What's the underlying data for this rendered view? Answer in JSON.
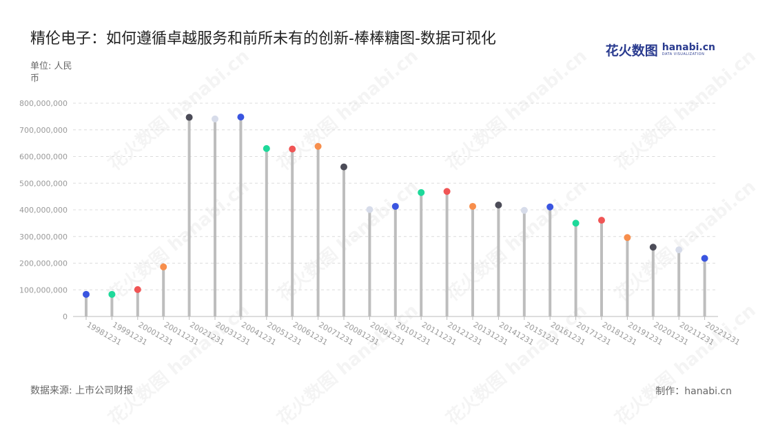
{
  "page": {
    "title": "精伦电子：如何遵循卓越服务和前所未有的创新-棒棒糖图-数据可视化",
    "unit": "单位: 人民币",
    "source": "数据来源: 上市公司财报",
    "credit": "制作：hanabi.cn",
    "logo_cn": "花火数图",
    "logo_en": "hanabi.cn",
    "logo_sub": "DATA VISUALIZATION",
    "watermark": "花火数图 hanabi.cn"
  },
  "chart_data": {
    "type": "lollipop",
    "categories": [
      "19981231",
      "19991231",
      "20001231",
      "20011231",
      "20021231",
      "20031231",
      "20041231",
      "20051231",
      "20061231",
      "20071231",
      "20081231",
      "20091231",
      "20101231",
      "20111231",
      "20121231",
      "20131231",
      "20141231",
      "20151231",
      "20161231",
      "20171231",
      "20181231",
      "20191231",
      "20201231",
      "20211231",
      "20221231"
    ],
    "values": [
      83000000,
      83000000,
      101000000,
      186000000,
      747000000,
      741000000,
      748000000,
      630000000,
      628000000,
      638000000,
      561000000,
      401000000,
      413000000,
      465000000,
      469000000,
      413000000,
      418000000,
      398000000,
      411000000,
      350000000,
      361000000,
      296000000,
      260000000,
      250000000,
      218000000
    ],
    "y_ticks": [
      0,
      100000000,
      200000000,
      300000000,
      400000000,
      500000000,
      600000000,
      700000000,
      800000000
    ],
    "y_tick_labels": [
      "0",
      "100,000,000",
      "200,000,000",
      "300,000,000",
      "400,000,000",
      "500,000,000",
      "600,000,000",
      "700,000,000",
      "800,000,000"
    ],
    "ylim": [
      0,
      800000000
    ],
    "grid": "horizontal dashed",
    "legend": "none",
    "stick_color": "#bdbdbd",
    "dot_colors": [
      "#3a55e0",
      "#1ed99a",
      "#f05555",
      "#f78e4c",
      "#4c4c58",
      "#d7dcea"
    ]
  }
}
